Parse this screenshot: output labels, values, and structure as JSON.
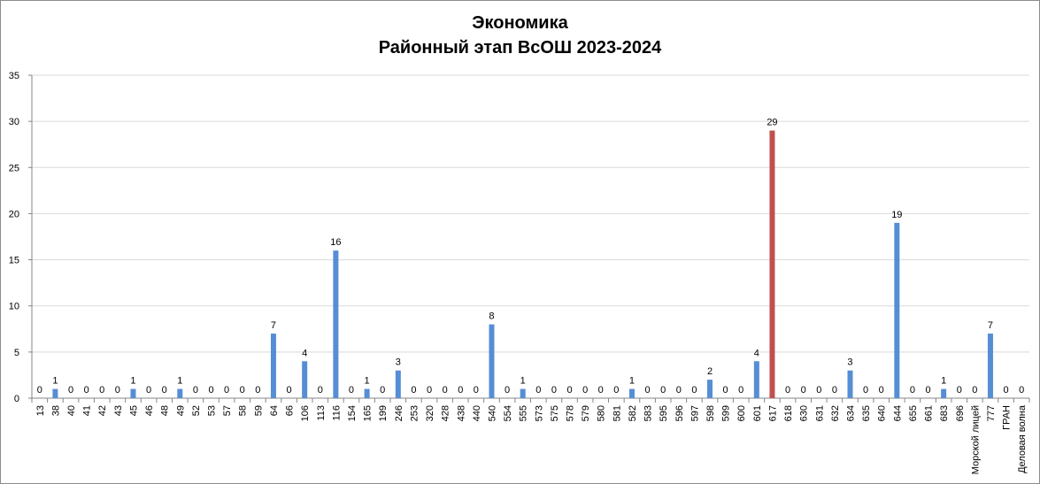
{
  "chart_data": {
    "type": "bar",
    "title": [
      "Экономика",
      "Районный этап ВсОШ 2023-2024"
    ],
    "xlabel": "",
    "ylabel": "",
    "ylim": [
      0,
      35
    ],
    "yticks": [
      0,
      5,
      10,
      15,
      20,
      25,
      30,
      35
    ],
    "grid": true,
    "legend": "none",
    "categories": [
      "13",
      "38",
      "40",
      "41",
      "42",
      "43",
      "45",
      "46",
      "48",
      "49",
      "52",
      "53",
      "57",
      "58",
      "59",
      "64",
      "66",
      "106",
      "113",
      "116",
      "154",
      "165",
      "199",
      "246",
      "253",
      "320",
      "428",
      "438",
      "440",
      "540",
      "554",
      "555",
      "573",
      "575",
      "578",
      "579",
      "580",
      "581",
      "582",
      "583",
      "595",
      "596",
      "597",
      "598",
      "599",
      "600",
      "601",
      "617",
      "618",
      "630",
      "631",
      "632",
      "634",
      "635",
      "640",
      "644",
      "655",
      "661",
      "683",
      "696",
      "Морской лицей",
      "777",
      "ГРАН",
      "Деловая волна"
    ],
    "values": [
      0,
      1,
      0,
      0,
      0,
      0,
      1,
      0,
      0,
      1,
      0,
      0,
      0,
      0,
      0,
      7,
      0,
      4,
      0,
      16,
      0,
      1,
      0,
      3,
      0,
      0,
      0,
      0,
      0,
      8,
      0,
      1,
      0,
      0,
      0,
      0,
      0,
      0,
      1,
      0,
      0,
      0,
      0,
      2,
      0,
      0,
      4,
      29,
      0,
      0,
      0,
      0,
      3,
      0,
      0,
      19,
      0,
      0,
      1,
      0,
      0,
      7,
      0,
      0
    ],
    "highlight_category": "617",
    "colors": {
      "bar": "#558ed5",
      "highlight": "#c0504d",
      "grid": "#d9d9d9"
    }
  }
}
